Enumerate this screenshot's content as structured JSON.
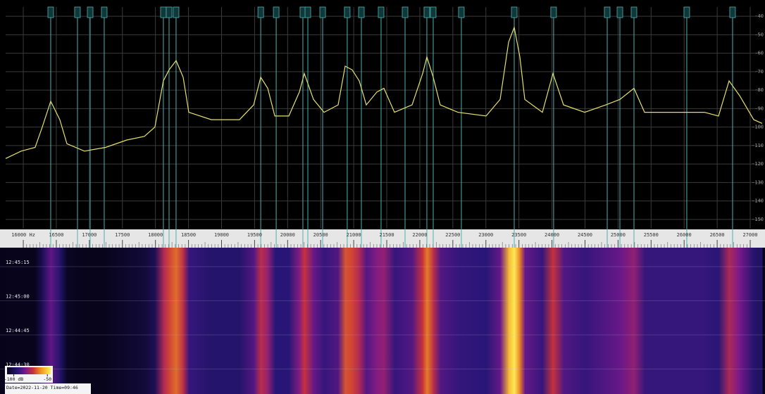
{
  "chart_data": {
    "type": "line",
    "x": [
      15733,
      15967,
      16180,
      16287,
      16415,
      16553,
      16660,
      16926,
      17246,
      17566,
      17833,
      17992,
      18120,
      18206,
      18312,
      18419,
      18504,
      18846,
      19272,
      19486,
      19593,
      19699,
      19806,
      20018,
      20178,
      20253,
      20391,
      20551,
      20764,
      20871,
      20977,
      21084,
      21190,
      21350,
      21457,
      21617,
      21883,
      22043,
      22107,
      22203,
      22309,
      22576,
      23003,
      23216,
      23344,
      23429,
      23514,
      23589,
      23855,
      24015,
      24175,
      24495,
      24815,
      25028,
      25241,
      25401,
      25881,
      26307,
      26520,
      26680,
      26840,
      27053,
      27181
    ],
    "values": [
      -117,
      -113,
      -111,
      -100,
      -86,
      -96,
      -109,
      -113,
      -111,
      -107,
      -105,
      -100,
      -75,
      -69,
      -64,
      -73,
      -92,
      -96,
      -96,
      -88,
      -73,
      -79,
      -94,
      -94,
      -81,
      -71,
      -85,
      -92,
      -88,
      -67,
      -69,
      -75,
      -88,
      -81,
      -79,
      -92,
      -88,
      -71,
      -62,
      -73,
      -88,
      -92,
      -94,
      -85,
      -54,
      -46,
      -62,
      -85,
      -92,
      -71,
      -88,
      -92,
      -88,
      -85,
      -79,
      -92,
      -92,
      -92,
      -94,
      -75,
      -83,
      -96,
      -98
    ],
    "color": "#e6df6e",
    "xlim": [
      15733,
      27181
    ],
    "xticks": [
      {
        "value": 16000,
        "label": "16000 Hz"
      },
      16500,
      17000,
      17500,
      18000,
      18500,
      19000,
      19500,
      20000,
      20500,
      21000,
      21500,
      22000,
      22500,
      23000,
      23500,
      24000,
      24500,
      25000,
      25500,
      26000,
      26500,
      27000
    ],
    "ylim": [
      -155,
      -35
    ],
    "yticks": [
      -40,
      -50,
      -60,
      -70,
      -80,
      -90,
      -100,
      -110,
      -120,
      -130,
      -140,
      -150
    ],
    "grid": true,
    "markers": [
      16415,
      16820,
      17012,
      17225,
      18120,
      18206,
      18312,
      19593,
      19827,
      20231,
      20306,
      20530,
      20902,
      21116,
      21414,
      21777,
      22107,
      22203,
      22629,
      23429,
      24025,
      24836,
      25028,
      25241,
      26040,
      26733
    ],
    "marker_color": "#4fb0b0",
    "waterfall": {
      "time_labels": [
        "12:45:15",
        "12:45:00",
        "12:44:45",
        "12:44:30"
      ]
    },
    "colorbar": {
      "lim": [
        -110,
        -45
      ],
      "ticks": [
        {
          "value": -100,
          "label": "-100 dB"
        },
        -50
      ]
    },
    "footer": "Date=2022-11-20 Time=09:46"
  }
}
